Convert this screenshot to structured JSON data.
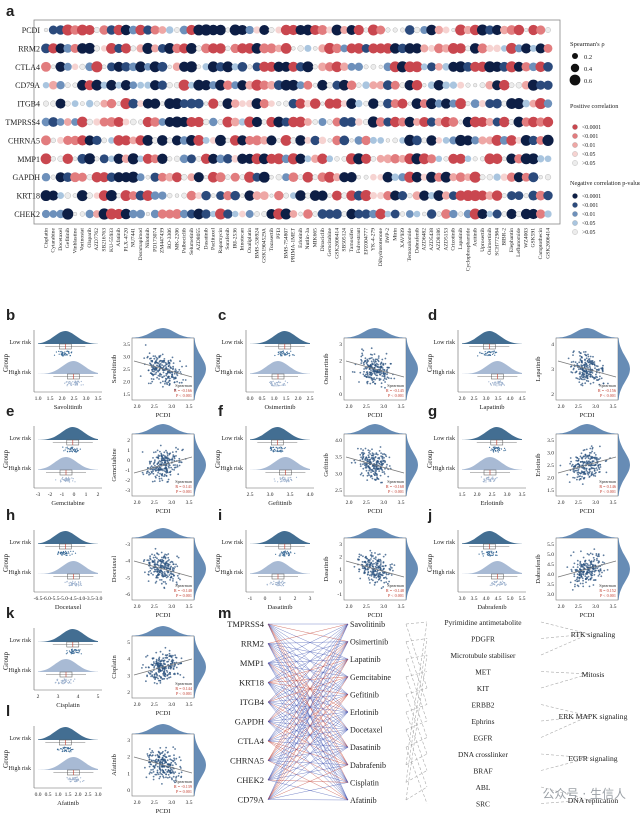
{
  "panel_letters": [
    "a",
    "b",
    "c",
    "d",
    "e",
    "f",
    "g",
    "h",
    "i",
    "j",
    "k",
    "l",
    "m"
  ],
  "watermark": "公众号 · 生信人",
  "chart_data": [
    {
      "type": "heatmap",
      "panel": "a",
      "genes": [
        "PCDI",
        "RRM2",
        "CTLA4",
        "CD79A",
        "ITGB4",
        "TMPRSS4",
        "CHRNA5",
        "MMP1",
        "GAPDH",
        "KRT18",
        "CHEK2"
      ],
      "drugs": [
        "Cisplatin",
        "Cytarabine",
        "Docetaxel",
        "Gefitinib",
        "Vinblastine",
        "Vorinostat",
        "Olaparib",
        "AZD7762",
        "SB216763",
        "KU-55933",
        "Afatinib",
        "PLX-4720",
        "NU7441",
        "Doramapimod",
        "Nilotinib",
        "PD173074",
        "ZM447439",
        "RO-3306",
        "MK-2206",
        "Palbociclib",
        "Selumetinib",
        "AZD8055",
        "Dasatinib",
        "Paclitaxel",
        "Rapamycin",
        "Sorafenib",
        "IRI-2536",
        "Irinotecan",
        "Oxaliplatin",
        "BMS-536924",
        "GSK1904529A",
        "Tozasertib",
        "PFI3",
        "BMS-754807",
        "PRIMA-1MET",
        "Erlotinib",
        "Nutlin-3a",
        "MIK665",
        "Dinaciclib",
        "Gemcitabine",
        "GSK2606414",
        "SB505124",
        "Tamoxifen",
        "Fulvestrant",
        "EPZ004777",
        "YK-4-279",
        "Dihydrorotenone",
        "IWP-2",
        "Mirin",
        "XAV939",
        "Temozolomide",
        "Dabrafenib",
        "AZD6482",
        "AZD5438",
        "AZD8186",
        "AZD5153",
        "Crizotinib",
        "Lapatinib",
        "Cyclophosphamide",
        "Axitinib",
        "Uprosertib",
        "Osimertinib",
        "SCH772984",
        "BIBR-2",
        "Elephantin",
        "Leflunomide",
        "WZ4003",
        "GSK591",
        "Camptothecin",
        "GSK2606414"
      ],
      "legend": {
        "size_title": "Spearman's ρ",
        "size_items": [
          "0.2",
          "0.4",
          "0.6"
        ],
        "pos_title": "Positive correlation p-value",
        "pos_items": [
          "<0.0001",
          "<0.001",
          "<0.01",
          "<0.05",
          ">0.05"
        ],
        "neg_title": "Negative correlation p-value",
        "neg_items": [
          "<0.0001",
          "<0.001",
          "<0.01",
          "<0.05",
          ">0.05"
        ],
        "pos_colors": [
          "#c9474f",
          "#e27c7e",
          "#eea7a5",
          "#f6d3d1",
          "#ececec"
        ],
        "neg_colors": [
          "#0d1e45",
          "#2b4a7c",
          "#6d90bb",
          "#a9c5df",
          "#ececec"
        ]
      }
    },
    {
      "type": "scatter",
      "panel": "b",
      "drug": "Savolitinib",
      "x_label": "PCDI",
      "group_label": "Group",
      "groups": [
        "Low risk",
        "High risk"
      ],
      "drug_ticks": [
        "1.0",
        "1.5",
        "2.0",
        "2.5",
        "3.0",
        "3.5"
      ],
      "y_ticks": [
        "3.5",
        "3.0",
        "2.5",
        "2.0",
        "1.5"
      ],
      "x_ticks": [
        "2.0",
        "2.5",
        "3.0",
        "3.5"
      ],
      "stats": [
        "Spearman",
        "R = -0.166",
        "P < 0.001"
      ]
    },
    {
      "type": "scatter",
      "panel": "c",
      "drug": "Osimertinib",
      "x_label": "PCDI",
      "group_label": "Group",
      "groups": [
        "Low risk",
        "High risk"
      ],
      "drug_ticks": [
        "0.0",
        "0.5",
        "1.0",
        "1.5",
        "2.0",
        "2.5"
      ],
      "y_ticks": [
        "3",
        "2",
        "1",
        "0"
      ],
      "x_ticks": [
        "2.0",
        "2.5",
        "3.0",
        "3.5"
      ],
      "stats": [
        "Spearman",
        "R = -0.145",
        "P < 0.001"
      ]
    },
    {
      "type": "scatter",
      "panel": "d",
      "drug": "Lapatinib",
      "x_label": "PCDI",
      "group_label": "Group",
      "groups": [
        "Low risk",
        "High risk"
      ],
      "drug_ticks": [
        "2.0",
        "2.5",
        "3.0",
        "3.5",
        "4.0",
        "4.5"
      ],
      "y_ticks": [
        "4",
        "3",
        "2"
      ],
      "x_ticks": [
        "2.0",
        "2.5",
        "3.0",
        "3.5"
      ],
      "stats": [
        "Spearman",
        "R = -0.156",
        "P < 0.001"
      ]
    },
    {
      "type": "scatter",
      "panel": "e",
      "drug": "Gemcitabine",
      "x_label": "PCDI",
      "group_label": "Group",
      "groups": [
        "Low risk",
        "High risk"
      ],
      "drug_ticks": [
        "-3",
        "-2",
        "-1",
        "0",
        "1",
        "2"
      ],
      "y_ticks": [
        "2",
        "1",
        "0",
        "-1",
        "-2",
        "-3"
      ],
      "x_ticks": [
        "2.0",
        "2.5",
        "3.0",
        "3.5"
      ],
      "stats": [
        "Spearman",
        "R = 0.141",
        "P = 0.001"
      ]
    },
    {
      "type": "scatter",
      "panel": "f",
      "drug": "Gefitinib",
      "x_label": "PCDI",
      "group_label": "Group",
      "groups": [
        "Low risk",
        "High risk"
      ],
      "drug_ticks": [
        "2.5",
        "3.0",
        "3.5",
        "4.0"
      ],
      "y_ticks": [
        "4.0",
        "3.5",
        "3.0",
        "2.5"
      ],
      "x_ticks": [
        "2.0",
        "2.5",
        "3.0",
        "3.5"
      ],
      "stats": [
        "Spearman",
        "R = -0.168",
        "P < 0.001"
      ]
    },
    {
      "type": "scatter",
      "panel": "g",
      "drug": "Erlotinib",
      "x_label": "PCDI",
      "group_label": "Group",
      "groups": [
        "Low risk",
        "High risk"
      ],
      "drug_ticks": [
        "1.5",
        "2.0",
        "2.5",
        "3.0",
        "3.5"
      ],
      "y_ticks": [
        "3.5",
        "3.0",
        "2.5",
        "2.0",
        "1.5"
      ],
      "x_ticks": [
        "2.0",
        "2.5",
        "3.0",
        "3.5"
      ],
      "stats": [
        "Spearman",
        "R = 0.146",
        "P < 0.001"
      ]
    },
    {
      "type": "scatter",
      "panel": "h",
      "drug": "Docetaxel",
      "x_label": "PCDI",
      "group_label": "Group",
      "groups": [
        "Low risk",
        "High risk"
      ],
      "drug_ticks": [
        "-6.5",
        "-6.0",
        "-5.5",
        "-5.0",
        "-4.5",
        "-4.0",
        "-3.5",
        "-3.0"
      ],
      "y_ticks": [
        "-3",
        "-4",
        "-5",
        "-6"
      ],
      "x_ticks": [
        "2.0",
        "2.5",
        "3.0",
        "3.5"
      ],
      "stats": [
        "Spearman",
        "R = -0.140",
        "P = 0.001"
      ]
    },
    {
      "type": "scatter",
      "panel": "i",
      "drug": "Dasatinib",
      "x_label": "PCDI",
      "group_label": "Group",
      "groups": [
        "Low risk",
        "High risk"
      ],
      "drug_ticks": [
        "-1",
        "0",
        "1",
        "2",
        "3"
      ],
      "y_ticks": [
        "3",
        "2",
        "1",
        "0",
        "-1"
      ],
      "x_ticks": [
        "2.0",
        "2.5",
        "3.0",
        "3.5"
      ],
      "stats": [
        "Spearman",
        "R = -0.148",
        "P < 0.001"
      ]
    },
    {
      "type": "scatter",
      "panel": "j",
      "drug": "Dabrafenib",
      "x_label": "PCDI",
      "group_label": "Group",
      "groups": [
        "Low risk",
        "High risk"
      ],
      "drug_ticks": [
        "3.0",
        "3.5",
        "4.0",
        "4.5",
        "5.0",
        "5.5"
      ],
      "y_ticks": [
        "5.5",
        "5.0",
        "4.5",
        "4.0",
        "3.5",
        "3.0"
      ],
      "x_ticks": [
        "2.0",
        "2.5",
        "3.0",
        "3.5"
      ],
      "stats": [
        "Spearman",
        "R = 0.152",
        "P < 0.001"
      ]
    },
    {
      "type": "scatter",
      "panel": "k",
      "drug": "Cisplatin",
      "x_label": "PCDI",
      "group_label": "Group",
      "groups": [
        "Low risk",
        "High risk"
      ],
      "drug_ticks": [
        "2",
        "3",
        "4",
        "5"
      ],
      "y_ticks": [
        "5",
        "4",
        "3",
        "2"
      ],
      "x_ticks": [
        "2.0",
        "2.5",
        "3.0",
        "3.5"
      ],
      "stats": [
        "Spearman",
        "R = 0.144",
        "P < 0.001"
      ]
    },
    {
      "type": "scatter",
      "panel": "l",
      "drug": "Afatinib",
      "x_label": "PCDI",
      "group_label": "Group",
      "groups": [
        "Low risk",
        "High risk"
      ],
      "drug_ticks": [
        "0.0",
        "0.5",
        "1.0",
        "1.5",
        "2.0",
        "2.5",
        "3.0"
      ],
      "y_ticks": [
        "3",
        "2",
        "1",
        "0"
      ],
      "x_ticks": [
        "2.0",
        "2.5",
        "3.0",
        "3.5"
      ],
      "stats": [
        "Spearman",
        "R = -0.139",
        "P = 0.001"
      ]
    },
    {
      "type": "diagram",
      "panel": "m",
      "genes": [
        "TMPRSS4",
        "RRM2",
        "MMP1",
        "KRT18",
        "ITGB4",
        "GAPDH",
        "CTLA4",
        "CHRNA5",
        "CHEK2",
        "CD79A"
      ],
      "drugs": [
        "Savolitinib",
        "Osimertinib",
        "Lapatinib",
        "Gemcitabine",
        "Gefitinib",
        "Erlotinib",
        "Docetaxel",
        "Dasatinib",
        "Dabrafenib",
        "Cisplatin",
        "Afatinib"
      ],
      "targets": [
        "Pyrimidine antimetabolite",
        "PDGFR",
        "Microtubule stabiliser",
        "MET",
        "KIT",
        "ERBB2",
        "Ephrins",
        "EGFR",
        "DNA crosslinker",
        "BRAF",
        "ABL",
        "SRC"
      ],
      "pathways": [
        "RTK signaling",
        "Mitosis",
        "ERK MAPK signaling",
        "EGFR signaling",
        "DNA replication"
      ]
    }
  ]
}
